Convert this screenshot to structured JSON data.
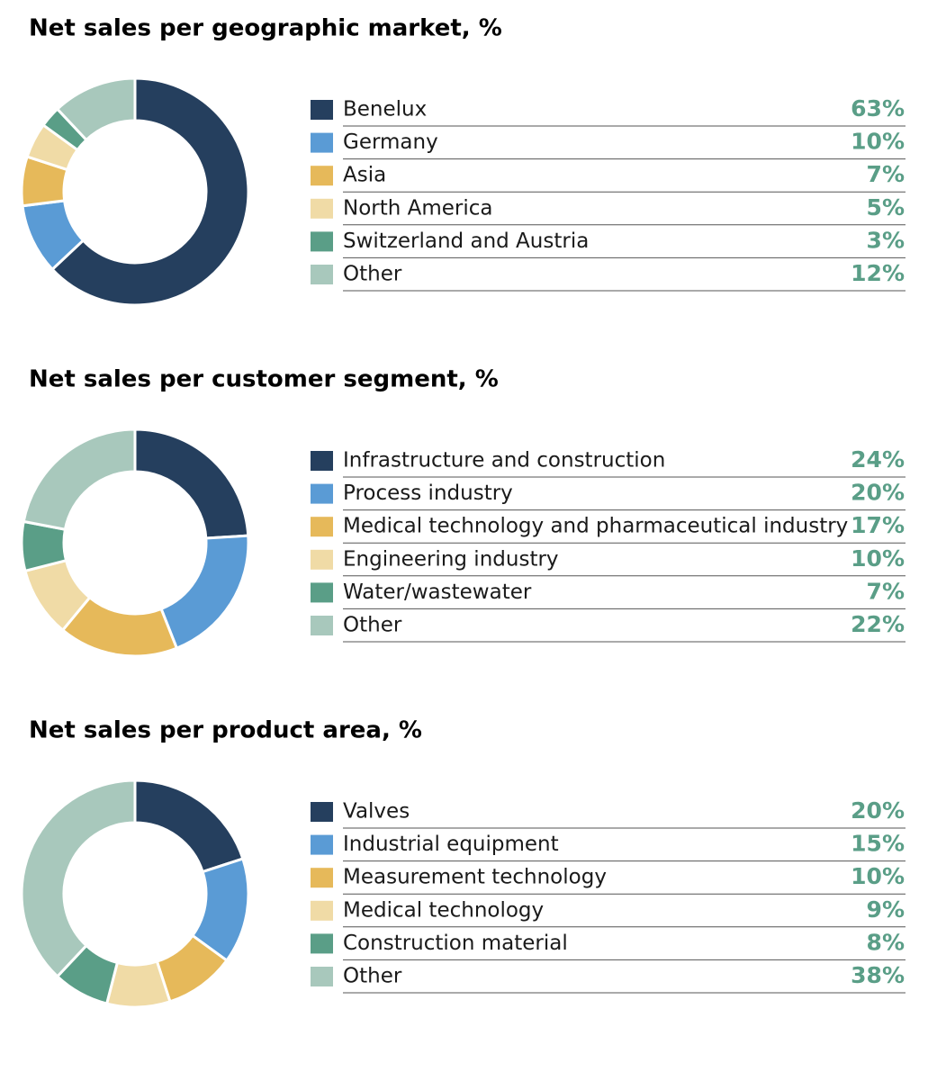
{
  "chart_data": [
    {
      "type": "donut",
      "title": "Net sales per geographic market, %",
      "categories": [
        "Benelux",
        "Germany",
        "Asia",
        "North America",
        "Switzerland and Austria",
        "Other"
      ],
      "values": [
        63,
        10,
        7,
        5,
        3,
        12
      ],
      "value_labels": [
        "63%",
        "10%",
        "7%",
        "5%",
        "3%",
        "12%"
      ],
      "colors": [
        "#253f5e",
        "#5a9bd5",
        "#e6b95a",
        "#f0dba6",
        "#5a9e87",
        "#a8c8bc"
      ]
    },
    {
      "type": "donut",
      "title": "Net sales per customer segment, %",
      "categories": [
        "Infrastructure and construction",
        "Process industry",
        "Medical technology and pharmaceutical industry",
        "Engineering industry",
        "Water/wastewater",
        "Other"
      ],
      "values": [
        24,
        20,
        17,
        10,
        7,
        22
      ],
      "value_labels": [
        "24%",
        "20%",
        "17%",
        "10%",
        "7%",
        "22%"
      ],
      "colors": [
        "#253f5e",
        "#5a9bd5",
        "#e6b95a",
        "#f0dba6",
        "#5a9e87",
        "#a8c8bc"
      ]
    },
    {
      "type": "donut",
      "title": "Net sales per product area, %",
      "categories": [
        "Valves",
        "Industrial equipment",
        "Measurement technology",
        "Medical technology",
        "Construction material",
        "Other"
      ],
      "values": [
        20,
        15,
        10,
        9,
        8,
        38
      ],
      "value_labels": [
        "20%",
        "15%",
        "10%",
        "9%",
        "8%",
        "38%"
      ],
      "colors": [
        "#253f5e",
        "#5a9bd5",
        "#e6b95a",
        "#f0dba6",
        "#5a9e87",
        "#a8c8bc"
      ]
    }
  ]
}
